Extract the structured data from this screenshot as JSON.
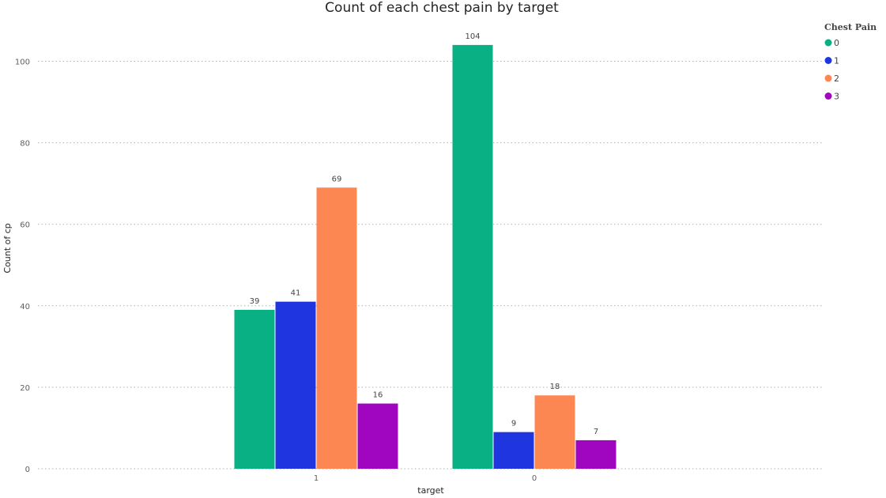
{
  "chart_data": {
    "type": "bar",
    "title": "Count of each chest pain by target",
    "xlabel": "target",
    "ylabel": "Count of cp",
    "categories": [
      "1",
      "0"
    ],
    "series": [
      {
        "name": "0",
        "values": [
          39,
          104
        ],
        "color": "#08b083"
      },
      {
        "name": "1",
        "values": [
          41,
          9
        ],
        "color": "#1f35e0"
      },
      {
        "name": "2",
        "values": [
          69,
          18
        ],
        "color": "#fc8753"
      },
      {
        "name": "3",
        "values": [
          16,
          7
        ],
        "color": "#a005bf"
      }
    ],
    "ylim": [
      0,
      110
    ],
    "yticks": [
      "0",
      "20",
      "40",
      "60",
      "80",
      "100"
    ],
    "grid": true,
    "legend": {
      "title": "Chest Pain",
      "placement": "top-right"
    }
  }
}
